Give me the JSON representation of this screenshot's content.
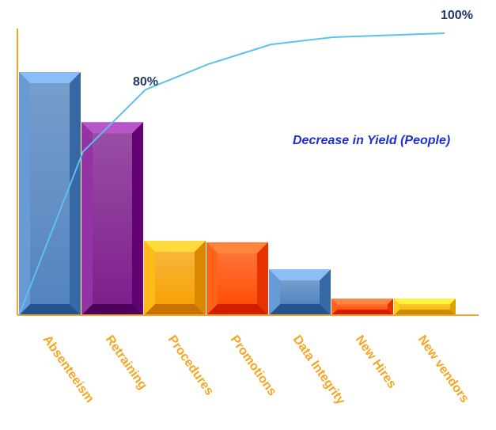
{
  "chart_data": {
    "type": "bar",
    "title": "Decrease in Yield (People)",
    "categories": [
      "Absenteeism",
      "Retraining",
      "Procedures",
      "Promotions",
      "Data Integrity",
      "New Hires",
      "New vendors"
    ],
    "values": [
      34,
      27,
      10.4,
      10.2,
      6.4,
      2.3,
      2.3
    ],
    "ylim": [
      0,
      40
    ],
    "bar_colors": [
      "#4f81bd",
      "#7b1a8a",
      "#f5a000",
      "#ff4a00",
      "#4f81bd",
      "#ff4a00",
      "#f5b800"
    ],
    "cumulative_series": {
      "values_percent": [
        0,
        58,
        80,
        89,
        96,
        98.6,
        100
      ],
      "color": "#5bc0f0"
    },
    "annotations": [
      "80%",
      "100%"
    ],
    "axis_color": "#f5a623",
    "category_label_color": "#f5a623",
    "title_color": "#1f2fd1",
    "annotation_color": "#1f3864"
  }
}
